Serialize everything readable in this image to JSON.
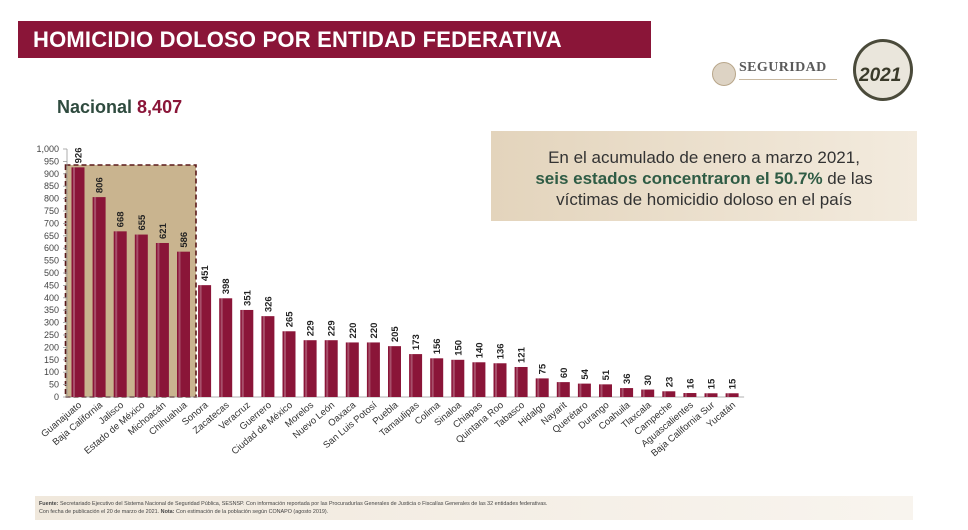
{
  "header": {
    "title": "HOMICIDIO DOLOSO POR ENTIDAD FEDERATIVA"
  },
  "logos": {
    "seguridad": "SEGURIDAD",
    "year": "2021"
  },
  "nacional": {
    "label": "Nacional",
    "value": "8,407"
  },
  "callout": {
    "line1": "En el acumulado de enero a marzo 2021,",
    "highlight": "seis estados concentraron el 50.7%",
    "line2_rest": " de las",
    "line3": "víctimas de homicidio doloso en el país"
  },
  "footer": {
    "fuente_label": "Fuente:",
    "fuente_text": " Secretariado Ejecutivo del Sistema Nacional de Seguridad Pública, SESNSP. Con información reportada por las Procuradurías Generales de Justicia o Fiscalías Generales de las 32 entidades federativas.",
    "line2": "Con fecha de publicación el 20 de marzo de 2021.",
    "nota_label": " Nota:",
    "nota_text": " Con estimación de la población según CONAPO (agosto 2019)."
  },
  "colors": {
    "bar": "#8a1538",
    "highlight_box": "#c9b48f",
    "highlight_border": "#5a1a1a",
    "axis_text": "#444444",
    "title_bg": "#8a1538"
  },
  "chart_data": {
    "type": "bar",
    "title": "",
    "xlabel": "",
    "ylabel": "",
    "ylim": [
      0,
      1000
    ],
    "yticks": [
      "0",
      "50",
      "100",
      "150",
      "200",
      "250",
      "300",
      "350",
      "400",
      "450",
      "500",
      "550",
      "600",
      "650",
      "700",
      "750",
      "800",
      "850",
      "900",
      "950",
      "1,000"
    ],
    "categories": [
      "Guanajuato",
      "Baja California",
      "Jalisco",
      "Estado de México",
      "Michoacán",
      "Chihuahua",
      "Sonora",
      "Zacatecas",
      "Veracruz",
      "Guerrero",
      "Ciudad de México",
      "Morelos",
      "Nuevo León",
      "Oaxaca",
      "San Luis Potosí",
      "Puebla",
      "Tamaulipas",
      "Colima",
      "Sinaloa",
      "Chiapas",
      "Quintana Roo",
      "Tabasco",
      "Hidalgo",
      "Nayarit",
      "Querétaro",
      "Durango",
      "Coahuila",
      "Tlaxcala",
      "Campeche",
      "Aguascalientes",
      "Baja California Sur",
      "Yucatán"
    ],
    "values": [
      926,
      806,
      668,
      655,
      621,
      586,
      451,
      398,
      351,
      326,
      265,
      229,
      229,
      220,
      220,
      205,
      173,
      156,
      150,
      140,
      136,
      121,
      75,
      60,
      54,
      51,
      36,
      30,
      23,
      16,
      15,
      15
    ],
    "value_labels": [
      "926",
      "806",
      "668",
      "655",
      "621",
      "586",
      "451",
      "398",
      "351",
      "326",
      "265",
      "229",
      "229",
      "220",
      "220",
      "205",
      "173",
      "156",
      "150",
      "140",
      "136",
      "121",
      "75",
      "60",
      "54",
      "51",
      "36",
      "30",
      "23",
      "16",
      "15",
      "15"
    ],
    "highlighted_count": 6,
    "grid": false
  }
}
